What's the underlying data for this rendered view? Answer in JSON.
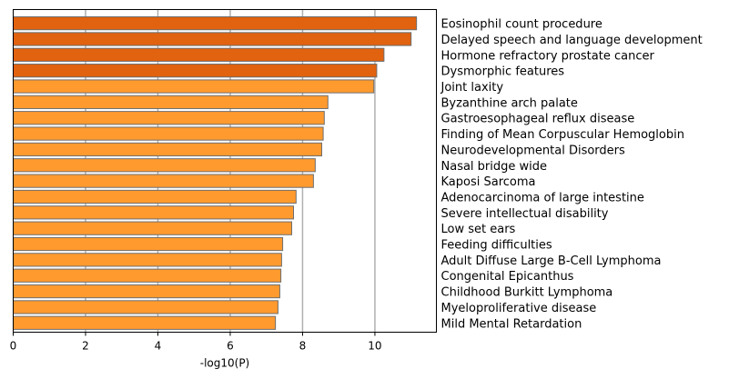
{
  "chart_data": {
    "type": "bar",
    "orientation": "horizontal",
    "categories": [
      "Eosinophil count procedure",
      "Delayed speech and language development",
      "Hormone refractory prostate cancer",
      "Dysmorphic features",
      "Joint laxity",
      "Byzanthine arch palate",
      "Gastroesophageal reflux disease",
      "Finding of Mean Corpuscular Hemoglobin",
      "Neurodevelopmental Disorders",
      "Nasal bridge wide",
      "Kaposi Sarcoma",
      "Adenocarcinoma of large intestine",
      "Severe intellectual disability",
      "Low set ears",
      "Feeding difficulties",
      "Adult Diffuse Large B-Cell Lymphoma",
      "Congenital Epicanthus",
      "Childhood Burkitt Lymphoma",
      "Myeloproliferative disease",
      "Mild Mental Retardation"
    ],
    "values": [
      11.15,
      11.0,
      10.25,
      10.05,
      9.97,
      8.7,
      8.6,
      8.57,
      8.53,
      8.35,
      8.3,
      7.82,
      7.75,
      7.7,
      7.45,
      7.42,
      7.4,
      7.37,
      7.32,
      7.25
    ],
    "xlabel": "-log10(P)",
    "xticks": [
      0,
      2,
      4,
      6,
      8,
      10
    ],
    "xlim": [
      0,
      11.7
    ],
    "grid": "vertical",
    "label_side": "right",
    "colors": {
      "highlight": "#e1620f",
      "normal": "#ff9a2e",
      "edge": "#6e6e6e",
      "grid": "#b0b0b0"
    },
    "highlight_count": 4
  }
}
